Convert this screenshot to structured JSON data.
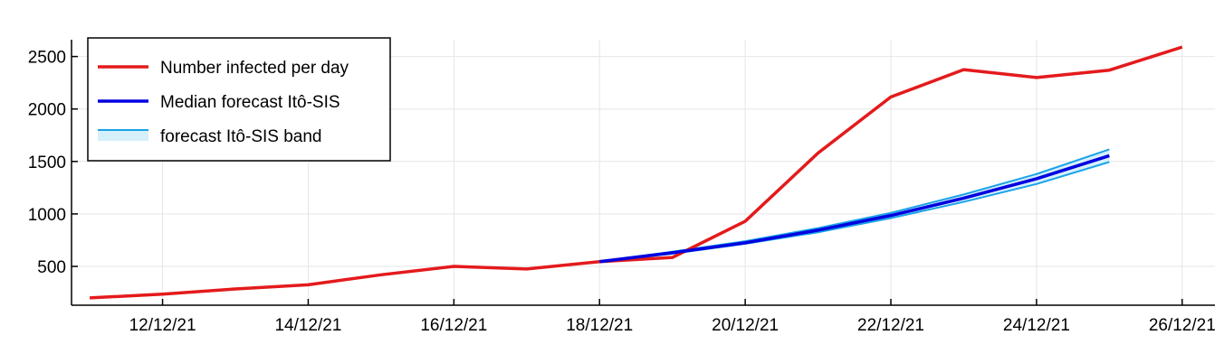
{
  "chart_data": {
    "type": "line",
    "title": "",
    "xlabel": "",
    "ylabel": "",
    "x_tick_labels": [
      "12/12/21",
      "14/12/21",
      "16/12/21",
      "18/12/21",
      "20/12/21",
      "22/12/21",
      "24/12/21",
      "26/12/21"
    ],
    "x_tick_days": [
      12,
      14,
      16,
      18,
      20,
      22,
      24,
      26
    ],
    "y_ticks": [
      500,
      1000,
      1500,
      2000,
      2500
    ],
    "xlim": [
      10.75,
      26.45
    ],
    "ylim": [
      130,
      2660
    ],
    "grid": true,
    "legend": {
      "position": "top-left",
      "entries": [
        {
          "label": "Number infected per day",
          "color": "#e41a1c",
          "kind": "line"
        },
        {
          "label": "Median forecast Itô-SIS",
          "color": "#0000e0",
          "kind": "line"
        },
        {
          "label": "forecast Itô-SIS band",
          "color": "#1aa3e8",
          "kind": "band"
        }
      ]
    },
    "series": [
      {
        "name": "Number infected per day",
        "color": "#e41a1c",
        "x": [
          11,
          12,
          13,
          14,
          15,
          16,
          17,
          18,
          19,
          20,
          21,
          22,
          23,
          24,
          25,
          26
        ],
        "values": [
          200,
          235,
          285,
          325,
          420,
          500,
          475,
          545,
          585,
          930,
          1580,
          2115,
          2375,
          2300,
          2370,
          2590
        ]
      },
      {
        "name": "Median forecast Itô-SIS",
        "color": "#0000e0",
        "x": [
          18,
          19,
          20,
          21,
          22,
          23,
          24,
          25
        ],
        "values": [
          545,
          630,
          725,
          845,
          985,
          1150,
          1335,
          1555
        ]
      },
      {
        "name": "forecast Itô-SIS band",
        "color": "#1aa3e8",
        "fill": "#d6f0fa",
        "x": [
          18,
          19,
          20,
          21,
          22,
          23,
          24,
          25
        ],
        "upper": [
          545,
          640,
          740,
          865,
          1010,
          1185,
          1380,
          1615
        ],
        "lower": [
          545,
          620,
          715,
          825,
          960,
          1115,
          1285,
          1495
        ]
      }
    ]
  }
}
